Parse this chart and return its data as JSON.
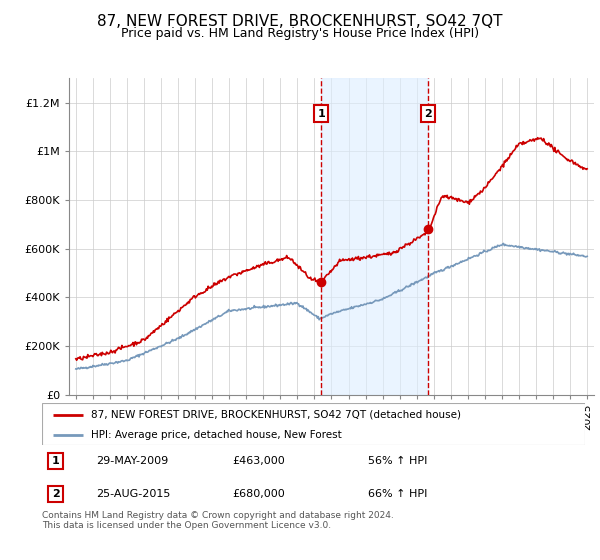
{
  "title": "87, NEW FOREST DRIVE, BROCKENHURST, SO42 7QT",
  "subtitle": "Price paid vs. HM Land Registry's House Price Index (HPI)",
  "title_fontsize": 11,
  "subtitle_fontsize": 9,
  "red_label": "87, NEW FOREST DRIVE, BROCKENHURST, SO42 7QT (detached house)",
  "blue_label": "HPI: Average price, detached house, New Forest",
  "footnote": "Contains HM Land Registry data © Crown copyright and database right 2024.\nThis data is licensed under the Open Government Licence v3.0.",
  "transaction1": {
    "num": "1",
    "date": "29-MAY-2009",
    "price": "£463,000",
    "pct": "56% ↑ HPI"
  },
  "transaction2": {
    "num": "2",
    "date": "25-AUG-2015",
    "price": "£680,000",
    "pct": "66% ↑ HPI"
  },
  "ylim": [
    0,
    1300000
  ],
  "yticks": [
    0,
    200000,
    400000,
    600000,
    800000,
    1000000,
    1200000
  ],
  "ytick_labels": [
    "£0",
    "£200K",
    "£400K",
    "£600K",
    "£800K",
    "£1M",
    "£1.2M"
  ],
  "red_color": "#cc0000",
  "blue_color": "#7799bb",
  "shading_color": "#ddeeff",
  "transaction1_x": 2009.4,
  "transaction2_x": 2015.65,
  "marker1_y": 463000,
  "marker2_y": 680000,
  "xlim_left": 1994.6,
  "xlim_right": 2025.4
}
